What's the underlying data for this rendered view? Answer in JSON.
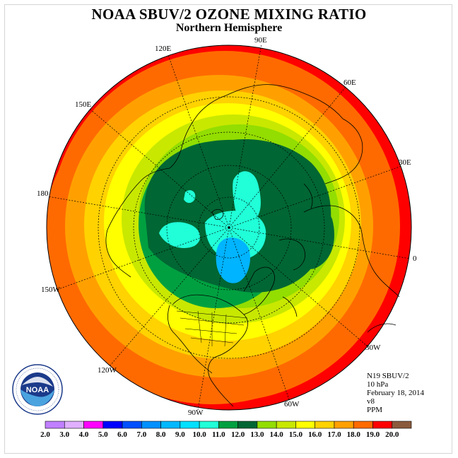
{
  "header": {
    "title": "NOAA SBUV/2 OZONE MIXING RATIO",
    "subtitle": "Northern Hemisphere"
  },
  "map": {
    "projection": "polar stereographic",
    "hemisphere": "north",
    "longitude_labels": [
      "90E",
      "60E",
      "30E",
      "0",
      "30W",
      "60W",
      "90W",
      "120W",
      "150W",
      "180",
      "150E",
      "120E"
    ],
    "field_colors_by_region": {
      "outer_ring": "#ff0000",
      "low_latitudes": "#ff6a00",
      "mid_latitudes": "#ffd200",
      "subpolar": "#93dd00",
      "polar_core": "#006633",
      "local_maxima": "#20ffd8",
      "pole_minimum": "#00b4ff"
    }
  },
  "info": {
    "satellite": "N19 SBUV/2",
    "pressure_level": "10 hPa",
    "date": "February 18, 2014",
    "version": "v8",
    "units": "PPM"
  },
  "logo": {
    "text": "NOAA",
    "ring_text": "NATIONAL OCEANIC AND ATMOSPHERIC ADMINISTRATION · U.S. DEPARTMENT OF COMMERCE"
  },
  "colorbar": {
    "labels": [
      "2.0",
      "3.0",
      "4.0",
      "5.0",
      "6.0",
      "7.0",
      "8.0",
      "9.0",
      "10.0",
      "11.0",
      "12.0",
      "13.0",
      "14.0",
      "15.0",
      "16.0",
      "17.0",
      "18.0",
      "19.0",
      "20.0"
    ],
    "colors": [
      "#c080ff",
      "#e0b0ff",
      "#ff00ff",
      "#0000ff",
      "#0050ff",
      "#0090ff",
      "#00b8ff",
      "#00e0ff",
      "#20ffd8",
      "#00a040",
      "#006633",
      "#93dd00",
      "#c8e800",
      "#ffff00",
      "#ffd200",
      "#ffa000",
      "#ff6a00",
      "#ff0000",
      "#8b5a3c"
    ]
  }
}
